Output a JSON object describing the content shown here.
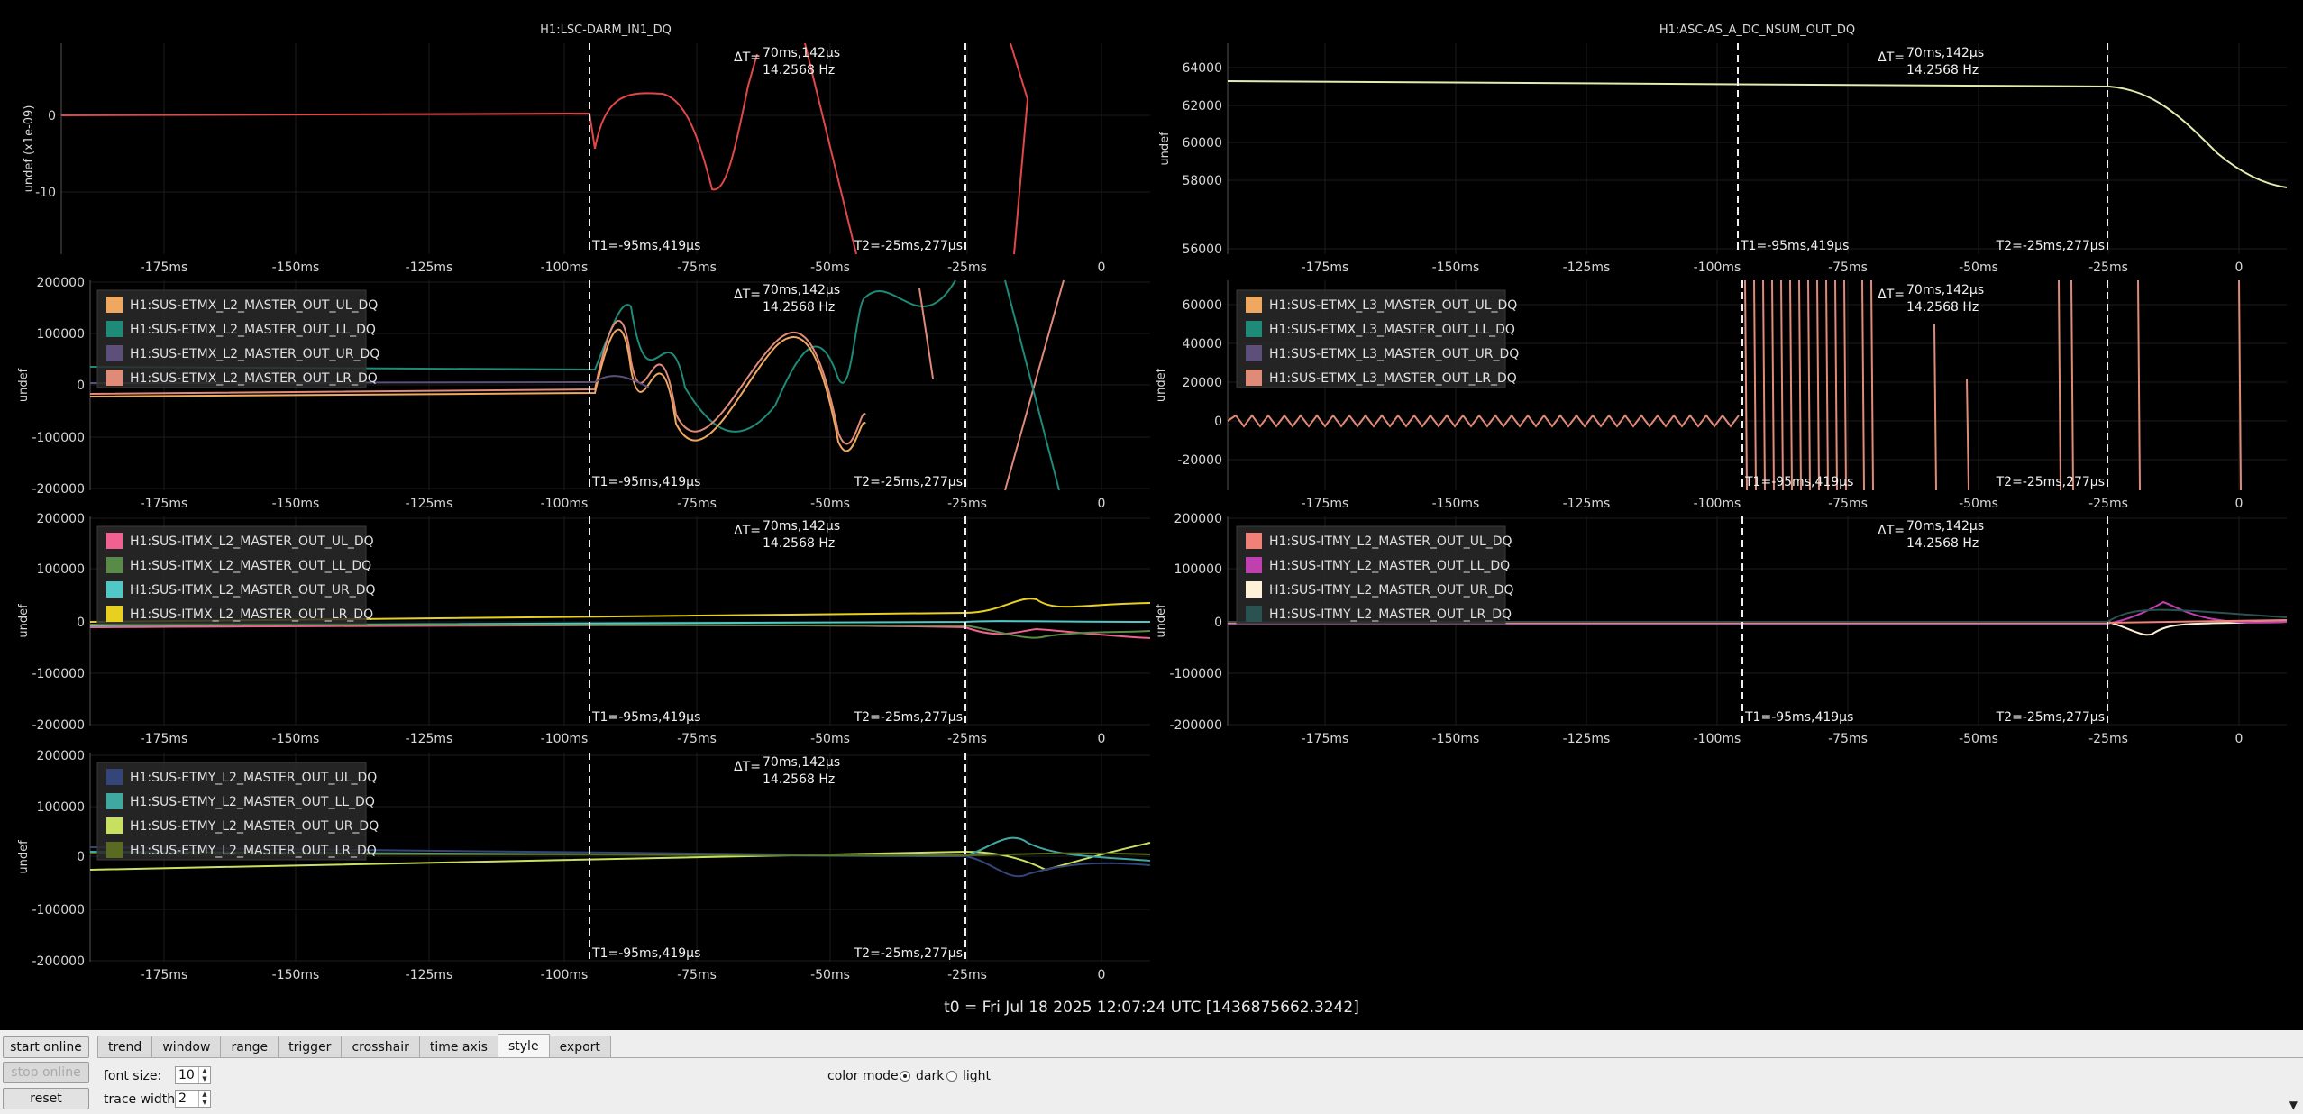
{
  "xticks": [
    "-175ms",
    "-150ms",
    "-125ms",
    "-100ms",
    "-75ms",
    "-50ms",
    "-25ms",
    "0"
  ],
  "cursor": {
    "t1": "T1=-95ms,419µs",
    "t2": "T2=-25ms,277µs",
    "dt_label": "ΔT=",
    "dt_value": "70ms,142µs",
    "dt_freq": "14.2568 Hz"
  },
  "plots": [
    {
      "id": "p1",
      "title": "H1:LSC-DARM_IN1_DQ",
      "ylabel": "undef (x1e-09)",
      "yticks": [
        "0",
        "-10"
      ],
      "legend": []
    },
    {
      "id": "p2",
      "title": "H1:ASC-AS_A_DC_NSUM_OUT_DQ",
      "ylabel": "undef",
      "yticks": [
        "64000",
        "62000",
        "60000",
        "58000",
        "56000"
      ],
      "legend": []
    },
    {
      "id": "p3",
      "title": "",
      "ylabel": "undef",
      "yticks": [
        "200000",
        "100000",
        "0",
        "-100000",
        "-200000"
      ],
      "legend": [
        {
          "name": "H1:SUS-ETMX_L2_MASTER_OUT_UL_DQ",
          "color": "#f0a860"
        },
        {
          "name": "H1:SUS-ETMX_L2_MASTER_OUT_LL_DQ",
          "color": "#1e8a78"
        },
        {
          "name": "H1:SUS-ETMX_L2_MASTER_OUT_UR_DQ",
          "color": "#5c4f7a"
        },
        {
          "name": "H1:SUS-ETMX_L2_MASTER_OUT_LR_DQ",
          "color": "#e08a78"
        }
      ]
    },
    {
      "id": "p4",
      "title": "",
      "ylabel": "undef",
      "yticks": [
        "60000",
        "40000",
        "20000",
        "0",
        "-20000"
      ],
      "legend": [
        {
          "name": "H1:SUS-ETMX_L3_MASTER_OUT_UL_DQ",
          "color": "#f0a860"
        },
        {
          "name": "H1:SUS-ETMX_L3_MASTER_OUT_LL_DQ",
          "color": "#1e8a78"
        },
        {
          "name": "H1:SUS-ETMX_L3_MASTER_OUT_UR_DQ",
          "color": "#5c4f7a"
        },
        {
          "name": "H1:SUS-ETMX_L3_MASTER_OUT_LR_DQ",
          "color": "#e08a78"
        }
      ]
    },
    {
      "id": "p5",
      "title": "",
      "ylabel": "undef",
      "yticks": [
        "200000",
        "100000",
        "0",
        "-100000",
        "-200000"
      ],
      "legend": [
        {
          "name": "H1:SUS-ITMX_L2_MASTER_OUT_UL_DQ",
          "color": "#f06090"
        },
        {
          "name": "H1:SUS-ITMX_L2_MASTER_OUT_LL_DQ",
          "color": "#5a8a48"
        },
        {
          "name": "H1:SUS-ITMX_L2_MASTER_OUT_UR_DQ",
          "color": "#50c8c8"
        },
        {
          "name": "H1:SUS-ITMX_L2_MASTER_OUT_LR_DQ",
          "color": "#e8d020"
        }
      ]
    },
    {
      "id": "p6",
      "title": "",
      "ylabel": "undef",
      "yticks": [
        "200000",
        "100000",
        "0",
        "-100000",
        "-200000"
      ],
      "legend": [
        {
          "name": "H1:SUS-ITMY_L2_MASTER_OUT_UL_DQ",
          "color": "#f08078"
        },
        {
          "name": "H1:SUS-ITMY_L2_MASTER_OUT_LL_DQ",
          "color": "#c040b0"
        },
        {
          "name": "H1:SUS-ITMY_L2_MASTER_OUT_UR_DQ",
          "color": "#fff0d8"
        },
        {
          "name": "H1:SUS-ITMY_L2_MASTER_OUT_LR_DQ",
          "color": "#2a5250"
        }
      ]
    },
    {
      "id": "p7",
      "title": "",
      "ylabel": "undef",
      "yticks": [
        "200000",
        "100000",
        "0",
        "-100000",
        "-200000"
      ],
      "legend": [
        {
          "name": "H1:SUS-ETMY_L2_MASTER_OUT_UL_DQ",
          "color": "#34457a"
        },
        {
          "name": "H1:SUS-ETMY_L2_MASTER_OUT_LL_DQ",
          "color": "#3fa8a0"
        },
        {
          "name": "H1:SUS-ETMY_L2_MASTER_OUT_UR_DQ",
          "color": "#c8e060"
        },
        {
          "name": "H1:SUS-ETMY_L2_MASTER_OUT_LR_DQ",
          "color": "#5a6a20"
        }
      ]
    }
  ],
  "t0": "t0 = Fri Jul 18 2025 12:07:24 UTC [1436875662.3242]",
  "controls": {
    "start_online": "start online",
    "stop_online": "stop online",
    "reset": "reset",
    "tabs": [
      "trend",
      "window",
      "range",
      "trigger",
      "crosshair",
      "time axis",
      "style",
      "export"
    ],
    "active_tab": "style",
    "font_size_label": "font size:",
    "font_size_value": "10",
    "trace_width_label": "trace width:",
    "trace_width_value": "2",
    "color_mode_label": "color mode:",
    "color_mode_dark": "dark",
    "color_mode_light": "light",
    "color_mode_selected": "dark"
  }
}
